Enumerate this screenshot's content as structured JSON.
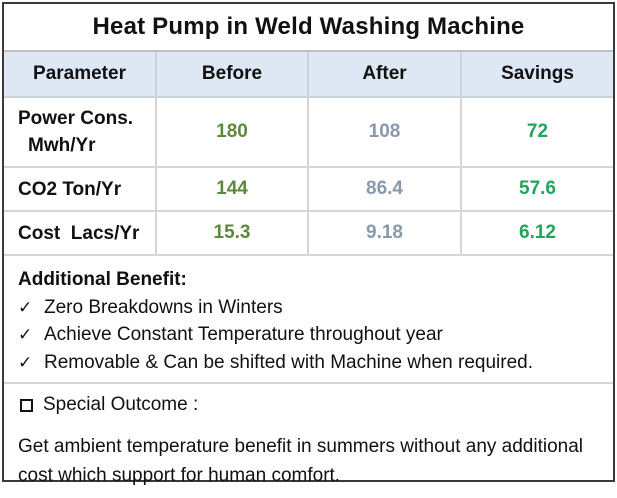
{
  "title": "Heat Pump in Weld Washing Machine",
  "table": {
    "headers": [
      "Parameter",
      "Before",
      "After",
      "Savings"
    ],
    "rows": [
      {
        "param_line1": "Power Cons.",
        "param_line2": "Mwh/Yr",
        "before": "180",
        "after": "108",
        "savings": "72"
      },
      {
        "param": "CO2 Ton/Yr",
        "before": "144",
        "after": "86.4",
        "savings": "57.6"
      },
      {
        "param": "Cost  Lacs/Yr",
        "before": "15.3",
        "after": "9.18",
        "savings": "6.12"
      }
    ]
  },
  "benefits": {
    "title": "Additional Benefit:",
    "check_symbol": "✓",
    "items": [
      "Zero Breakdowns in Winters",
      "Achieve Constant Temperature throughout year",
      "Removable & Can be shifted with Machine when required."
    ]
  },
  "outcome": {
    "title": "Special Outcome :",
    "text": "Get ambient temperature benefit in summers without any additional cost which support for human comfort."
  },
  "colors": {
    "before": "#5a8a3a",
    "after": "#8899ab",
    "savings": "#21a55a",
    "header_bg": "#dde8f4"
  }
}
